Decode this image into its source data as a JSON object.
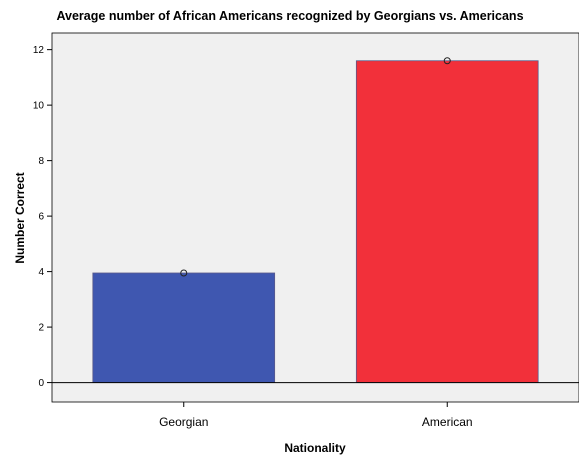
{
  "chart_data": {
    "type": "bar",
    "title": "Average number of African Americans recognized by Georgians vs. Americans",
    "xlabel": "Nationality",
    "ylabel": "Number Correct",
    "categories": [
      "Georgian",
      "American"
    ],
    "values": [
      3.95,
      11.6
    ],
    "ylim": [
      -0.7,
      12.6
    ],
    "yticks": [
      0,
      2,
      4,
      6,
      8,
      10,
      12
    ],
    "ytick_labels": [
      "0",
      "2",
      "4",
      "6",
      "8",
      "10",
      "12"
    ],
    "bar_colors": [
      "#3f57b0",
      "#f2303a"
    ],
    "plot_background": "#f0f0f0",
    "grid": false,
    "legend": "none",
    "point_markers": true
  }
}
